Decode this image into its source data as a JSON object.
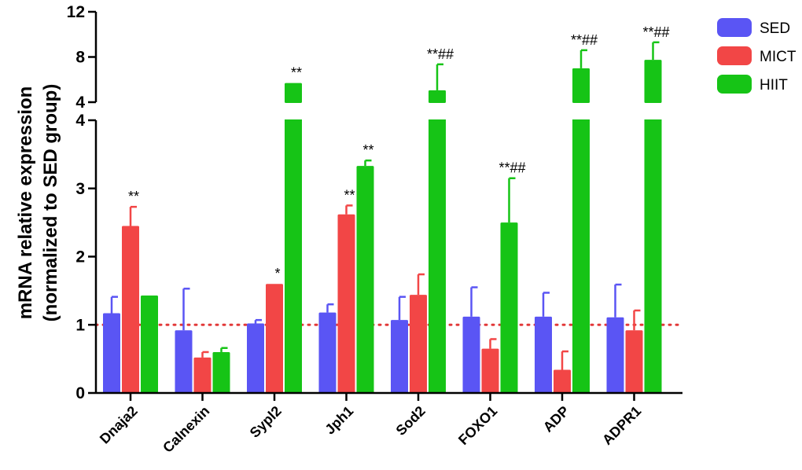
{
  "chart_data": {
    "type": "bar",
    "title": "",
    "xlabel": "",
    "ylabel_line1": "mRNA relative expression",
    "ylabel_line2": "(normalized to SED group)",
    "categories": [
      "Dnaja2",
      "Calnexin",
      "Sypl2",
      "Jph1",
      "Sod2",
      "FOXO1",
      "ADP",
      "ADPR1"
    ],
    "series": [
      {
        "name": "SED",
        "color": "#5a55f4",
        "values": [
          1.17,
          0.92,
          1.02,
          1.18,
          1.07,
          1.12,
          1.12,
          1.11
        ],
        "errors": [
          0.24,
          0.61,
          0.05,
          0.12,
          0.34,
          0.43,
          0.35,
          0.48
        ]
      },
      {
        "name": "MICT",
        "color": "#f24646",
        "values": [
          2.45,
          0.52,
          1.6,
          2.62,
          1.44,
          0.65,
          0.34,
          0.92
        ],
        "errors": [
          0.28,
          0.08,
          0.0,
          0.13,
          0.3,
          0.14,
          0.27,
          0.29
        ]
      },
      {
        "name": "HIIT",
        "color": "#16c416",
        "values": [
          1.43,
          0.6,
          5.7,
          3.33,
          5.05,
          2.5,
          7.0,
          7.75
        ],
        "errors": [
          0.0,
          0.06,
          0.0,
          0.08,
          2.3,
          0.65,
          1.6,
          1.55
        ]
      }
    ],
    "annotations": [
      {
        "category": "Dnaja2",
        "series": "MICT",
        "text": "**"
      },
      {
        "category": "Sypl2",
        "series": "MICT",
        "text": "*"
      },
      {
        "category": "Sypl2",
        "series": "HIIT",
        "text": "**"
      },
      {
        "category": "Jph1",
        "series": "MICT",
        "text": "**"
      },
      {
        "category": "Jph1",
        "series": "HIIT",
        "text": "**"
      },
      {
        "category": "Sod2",
        "series": "HIIT",
        "text": "**##"
      },
      {
        "category": "FOXO1",
        "series": "HIIT",
        "text": "**##"
      },
      {
        "category": "ADP",
        "series": "HIIT",
        "text": "**##"
      },
      {
        "category": "ADPR1",
        "series": "HIIT",
        "text": "**##"
      }
    ],
    "y_axis": {
      "broken": true,
      "lower_segment": {
        "range": [
          0,
          4
        ],
        "ticks": [
          "0",
          "1",
          "2",
          "3",
          "4"
        ]
      },
      "upper_segment": {
        "range": [
          4,
          12
        ],
        "ticks": [
          "4",
          "8",
          "12"
        ]
      }
    },
    "reference_line": {
      "value": 1,
      "style": "dotted",
      "color": "#e23a3a"
    },
    "legend_position": "top-right",
    "grid": false
  }
}
